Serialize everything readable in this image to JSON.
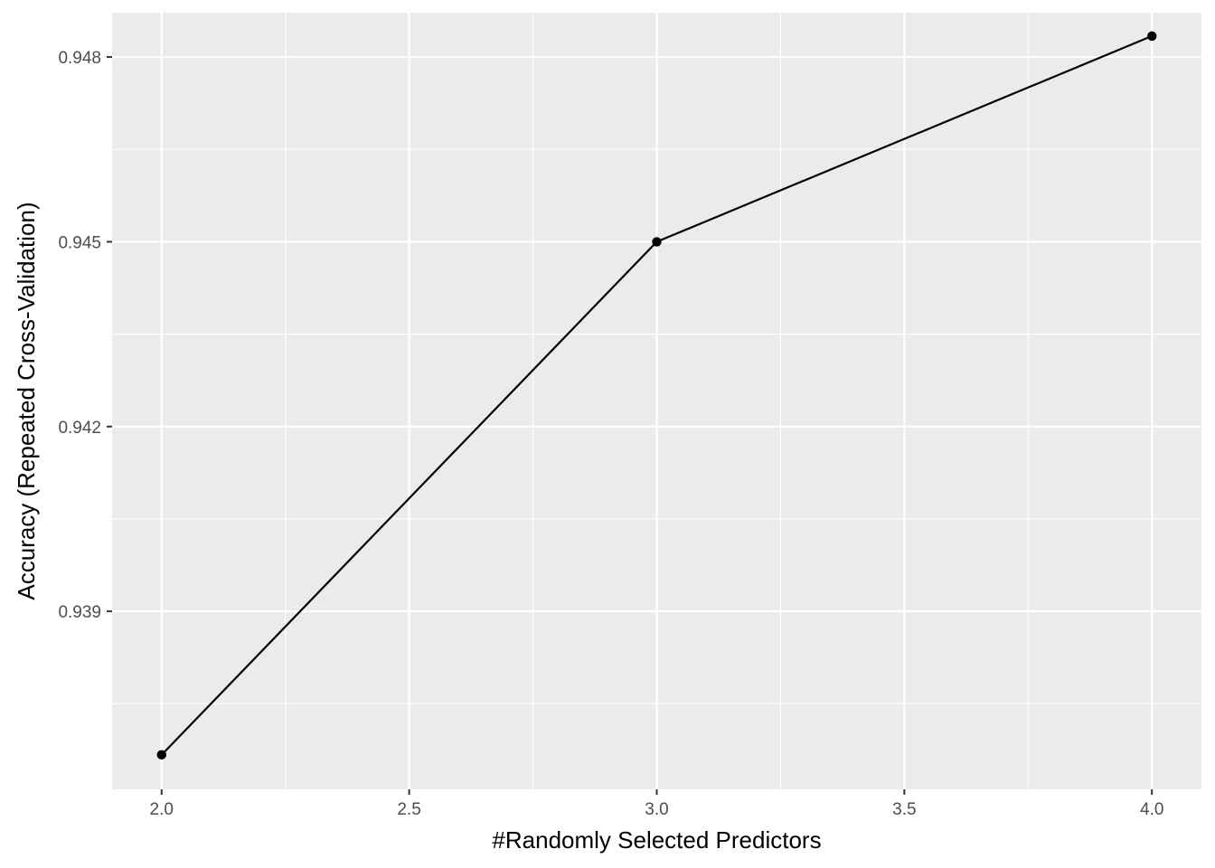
{
  "chart_data": {
    "type": "line",
    "title": "",
    "xlabel": "#Randomly Selected Predictors",
    "ylabel": "Accuracy (Repeated Cross-Validation)",
    "x": [
      2,
      3,
      4
    ],
    "series": [
      {
        "values": [
          0.93667,
          0.945,
          0.94834
        ]
      }
    ],
    "xlim": [
      1.9,
      4.1
    ],
    "ylim": [
      0.93611,
      0.94872
    ],
    "x_ticks": [
      2.0,
      2.5,
      3.0,
      3.5,
      4.0
    ],
    "x_tick_labels": [
      "2.0",
      "2.5",
      "3.0",
      "3.5",
      "4.0"
    ],
    "y_ticks": [
      0.939,
      0.942,
      0.945,
      0.948
    ],
    "y_tick_labels": [
      "0.939",
      "0.942",
      "0.945",
      "0.948"
    ],
    "x_minor_ticks": [
      2.25,
      2.75,
      3.25,
      3.75
    ],
    "y_minor_ticks": [
      0.9375,
      0.9405,
      0.9435,
      0.9465
    ],
    "grid": true,
    "legend": "none",
    "colors": {
      "panel_background": "#ebebeb",
      "grid": "#ffffff",
      "line": "#000000",
      "point": "#000000",
      "tick_label": "#4d4d4d",
      "axis_title": "#000000"
    }
  }
}
